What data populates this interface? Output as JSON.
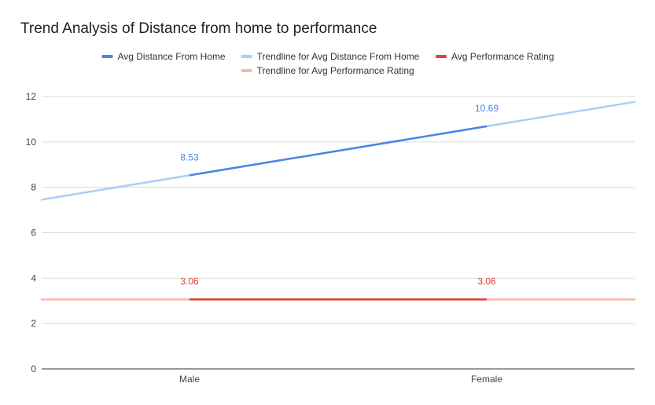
{
  "chart_data": {
    "type": "line",
    "title": "Trend Analysis of Distance from home to performance",
    "categories": [
      "Male",
      "Female"
    ],
    "xlabel": "",
    "ylabel": "",
    "ylim": [
      0,
      12
    ],
    "yticks": [
      0,
      2,
      4,
      6,
      8,
      10,
      12
    ],
    "grid": true,
    "legend_position": "top",
    "series": [
      {
        "name": "Avg Distance From Home",
        "values": [
          8.53,
          10.69
        ],
        "labels": [
          "8.53",
          "10.69"
        ],
        "color": "#4a86e8",
        "label_color": "#4a86e8"
      },
      {
        "name": "Avg Performance Rating",
        "values": [
          3.06,
          3.06
        ],
        "labels": [
          "3.06",
          "3.06"
        ],
        "color": "#db4437",
        "label_color": "#db4437"
      }
    ],
    "trendlines": [
      {
        "name": "Trendline for Avg Distance From Home",
        "values": [
          8.53,
          10.69
        ],
        "color": "#aecbfa"
      },
      {
        "name": "Trendline for Avg Performance Rating",
        "values": [
          3.06,
          3.06
        ],
        "color": "#f7b5ad"
      }
    ],
    "legend": [
      {
        "name": "Avg Distance From Home",
        "color": "#4a86e8"
      },
      {
        "name": "Trendline for Avg Distance From Home",
        "color": "#aecbfa"
      },
      {
        "name": "Avg Performance Rating",
        "color": "#db4437"
      },
      {
        "name": "Trendline for Avg Performance Rating",
        "color": "#f7b5ad"
      }
    ]
  }
}
